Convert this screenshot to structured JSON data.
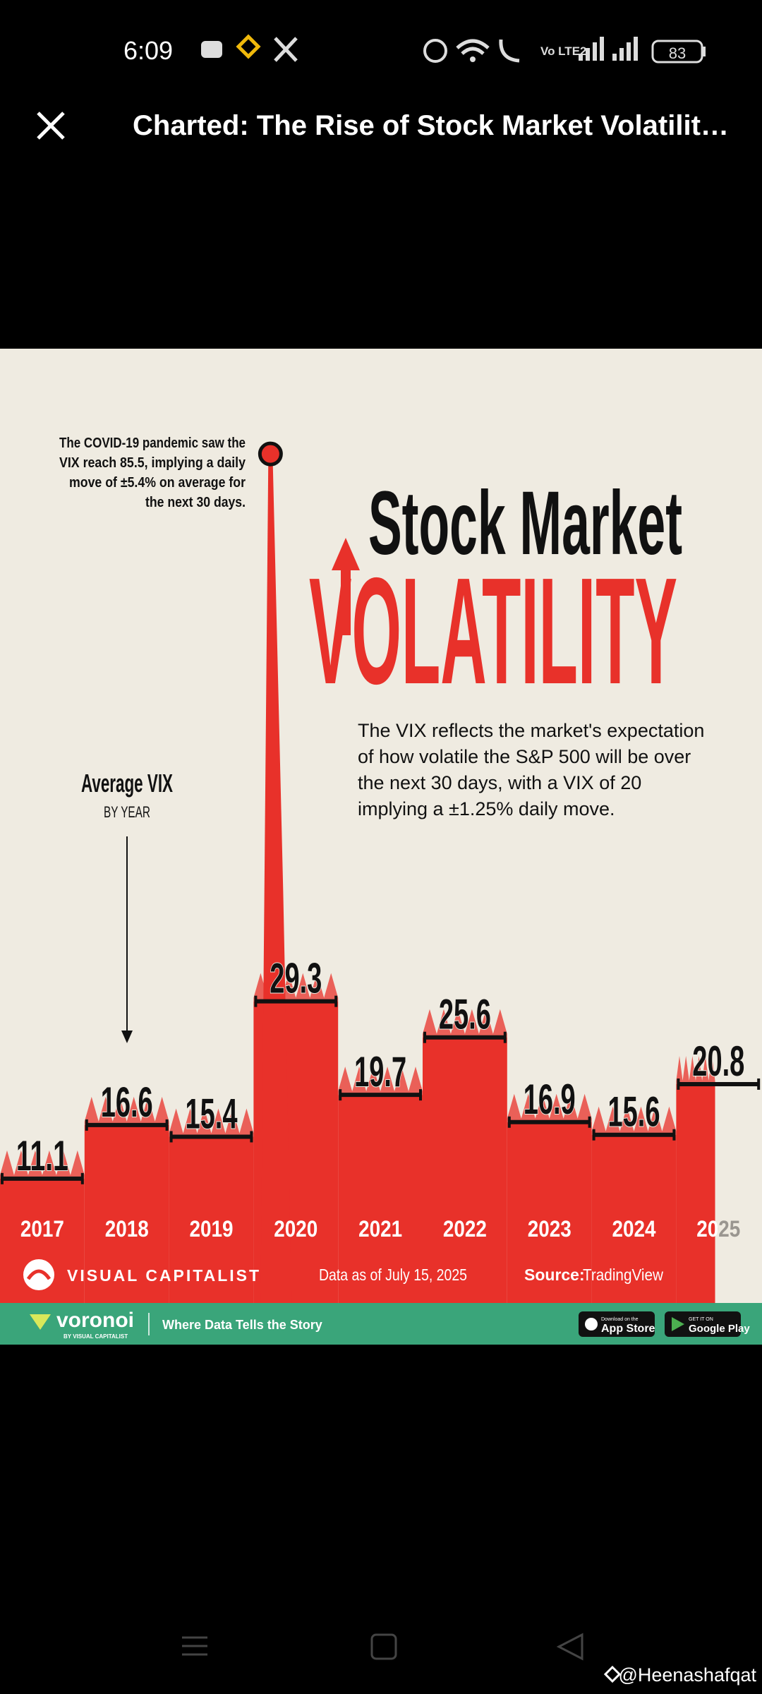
{
  "status_bar": {
    "time": "6:09",
    "network": "Vo LTE2",
    "battery": "83"
  },
  "header": {
    "title": "Charted: The Rise of Stock Market Volatilit…"
  },
  "infographic": {
    "title_line1": "Stock Market",
    "title_line2": "VOLATILITY",
    "annotation": [
      "The COVID-19 pandemic saw the",
      "VIX reach 85.5, implying a daily",
      "move of ±5.4% on average for",
      "the next 30 days."
    ],
    "description": [
      "The VIX reflects the market's expectation",
      "of how volatile the S&P 500 will be over",
      "the next 30 days, with a VIX of 20",
      "implying a ±1.25% daily move."
    ],
    "legend_title": "Average VIX",
    "legend_subtitle": "BY YEAR",
    "chart_data": {
      "type": "bar",
      "categories": [
        "2017",
        "2018",
        "2019",
        "2020",
        "2021",
        "2022",
        "2023",
        "2024",
        "2025"
      ],
      "values": [
        11.1,
        16.6,
        15.4,
        29.3,
        19.7,
        25.6,
        16.9,
        15.6,
        20.8
      ],
      "peak": {
        "category": "2020",
        "value": 85.5
      },
      "color": "#e8312a"
    },
    "brand": "VISUAL CAPITALIST",
    "data_note": "Data as of July 15, 2025",
    "source_label": "Source:",
    "source": "TradingView"
  },
  "footer_bar": {
    "logo": "voronoi",
    "logo_sub": "BY VISUAL CAPITALIST",
    "tagline": "Where Data Tells the Story",
    "app_store_small": "Download on the",
    "app_store": "App Store",
    "google_small": "GET IT ON",
    "google": "Google Play"
  },
  "watermark": "@Heenashafqat"
}
